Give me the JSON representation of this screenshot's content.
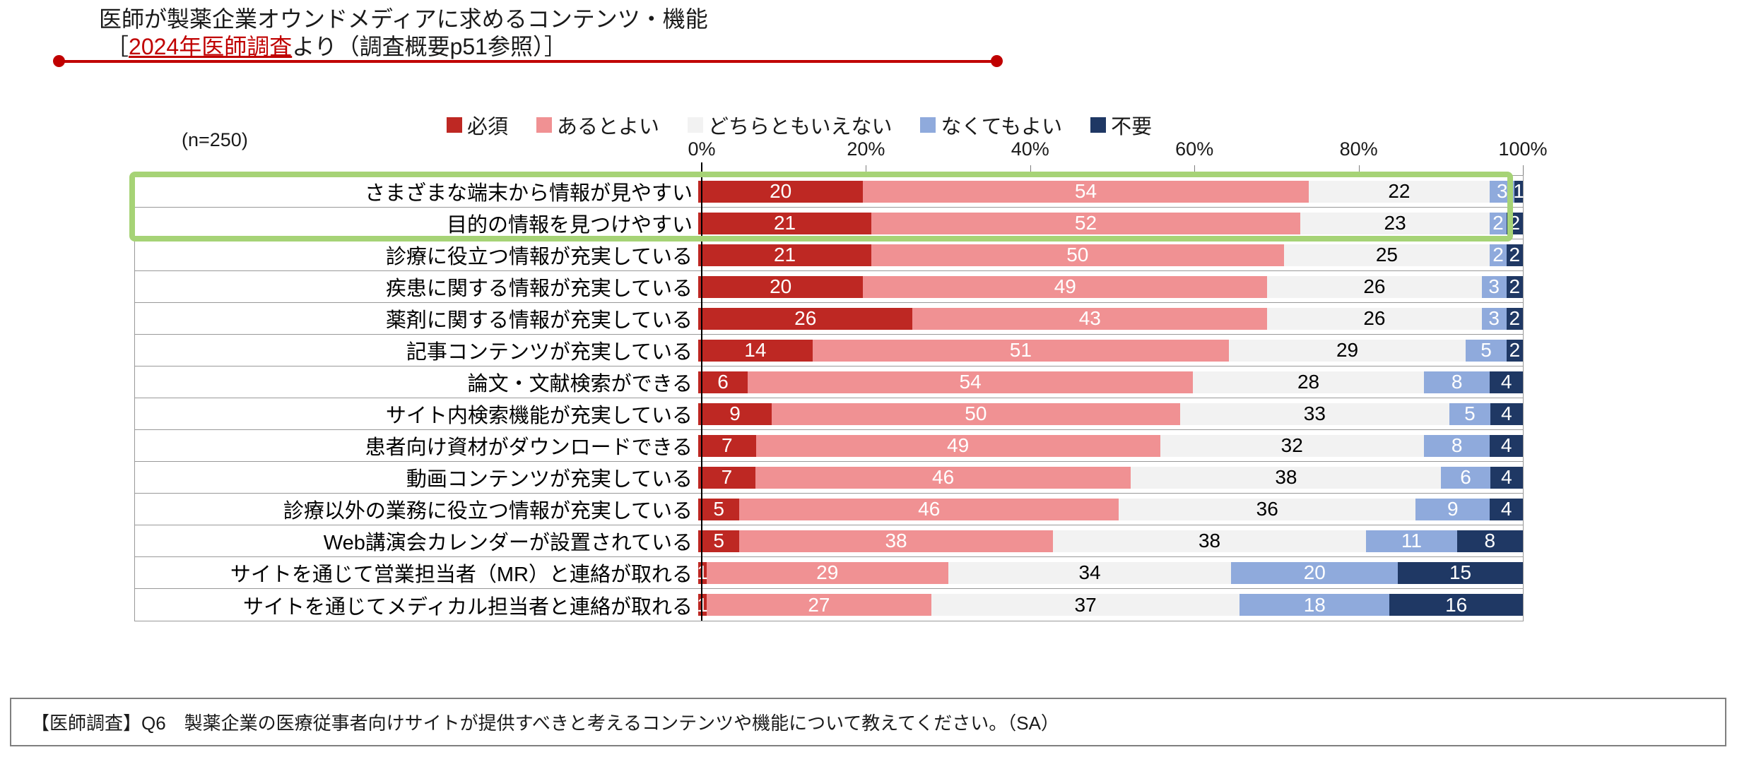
{
  "header": {
    "title": "医師が製薬企業オウンドメディアに求めるコンテンツ・機能",
    "subtitle_prefix": "［",
    "subtitle_link": "2024年医師調査",
    "subtitle_suffix": "より（調査概要p51参照）］"
  },
  "colors": {
    "accent_red": "#C00000",
    "highlight_green": "#A6D376"
  },
  "chart_data": {
    "type": "bar",
    "stacked": true,
    "orientation": "horizontal",
    "unit": "%",
    "n_label": "(n=250)",
    "x_ticks": [
      "0%",
      "20%",
      "40%",
      "60%",
      "80%",
      "100%"
    ],
    "xlim": [
      0,
      100
    ],
    "legend_position": "top",
    "highlighted_categories": [
      "さまざまな端末から情報が見やすい",
      "目的の情報を見つけやすい"
    ],
    "categories": [
      "さまざまな端末から情報が見やすい",
      "目的の情報を見つけやすい",
      "診療に役立つ情報が充実している",
      "疾患に関する情報が充実している",
      "薬剤に関する情報が充実している",
      "記事コンテンツが充実している",
      "論文・文献検索ができる",
      "サイト内検索機能が充実している",
      "患者向け資材がダウンロードできる",
      "動画コンテンツが充実している",
      "診療以外の業務に役立つ情報が充実している",
      "Web講演会カレンダーが設置されている",
      "サイトを通じて営業担当者（MR）と連絡が取れる",
      "サイトを通じてメディカル担当者と連絡が取れる"
    ],
    "series": [
      {
        "name": "必須",
        "color": "#BE2823",
        "label_color": "#FFFFFF",
        "values": [
          20,
          21,
          21,
          20,
          26,
          14,
          6,
          9,
          7,
          7,
          5,
          5,
          1,
          1
        ]
      },
      {
        "name": "あるとよい",
        "color": "#F09193",
        "label_color": "#FFFFFF",
        "values": [
          54,
          52,
          50,
          49,
          43,
          51,
          54,
          50,
          49,
          46,
          46,
          38,
          29,
          27
        ]
      },
      {
        "name": "どちらともいえない",
        "color": "#F2F2F2",
        "label_color": "#000000",
        "values": [
          22,
          23,
          25,
          26,
          26,
          29,
          28,
          33,
          32,
          38,
          36,
          38,
          34,
          37
        ]
      },
      {
        "name": "なくてもよい",
        "color": "#8FAADC",
        "label_color": "#FFFFFF",
        "values": [
          3,
          2,
          2,
          3,
          3,
          5,
          8,
          5,
          8,
          6,
          9,
          11,
          20,
          18
        ]
      },
      {
        "name": "不要",
        "color": "#1F3864",
        "label_color": "#FFFFFF",
        "values": [
          1,
          2,
          2,
          2,
          2,
          2,
          4,
          4,
          4,
          4,
          4,
          8,
          15,
          16
        ]
      }
    ]
  },
  "footer": {
    "text": "【医師調査】Q6　製薬企業の医療従事者向けサイトが提供すべきと考えるコンテンツや機能について教えてください。（SA）"
  }
}
